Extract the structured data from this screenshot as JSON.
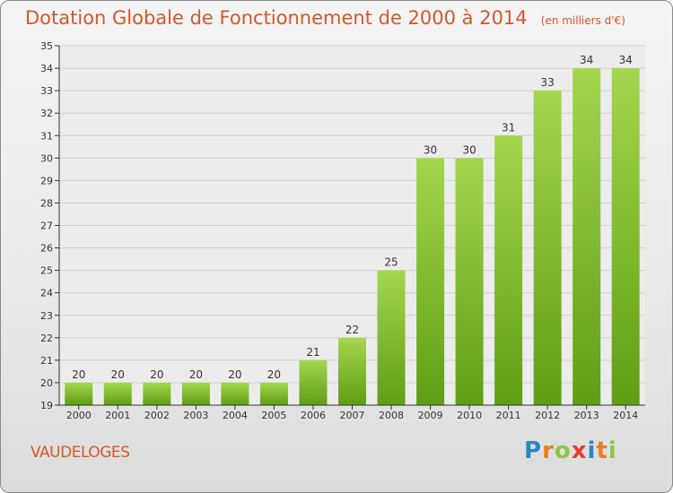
{
  "header": {
    "title": "Dotation Globale de Fonctionnement de 2000 à 2014",
    "unit": "(en milliers d'€)"
  },
  "commune": "VAUDELOGES",
  "logo": {
    "letters": [
      "P",
      "r",
      "o",
      "x",
      "i",
      "t",
      "i"
    ],
    "colors": [
      "#2e86c1",
      "#e67e22",
      "#8dc63f",
      "#e53935",
      "#2e86c1",
      "#e67e22",
      "#8dc63f"
    ]
  },
  "colors": {
    "title": "#d4572a",
    "bar_light": "#a4d64e",
    "bar_dark": "#5f9e14",
    "grid": "#cfcfcf",
    "axis": "#333333"
  },
  "chart_data": {
    "type": "bar",
    "categories": [
      "2000",
      "2001",
      "2002",
      "2003",
      "2004",
      "2005",
      "2006",
      "2007",
      "2008",
      "2009",
      "2010",
      "2011",
      "2012",
      "2013",
      "2014"
    ],
    "values": [
      20,
      20,
      20,
      20,
      20,
      20,
      21,
      22,
      25,
      30,
      30,
      31,
      33,
      34,
      34
    ],
    "ylim": [
      19,
      35
    ],
    "yticks": [
      19,
      20,
      21,
      22,
      23,
      24,
      25,
      26,
      27,
      28,
      29,
      30,
      31,
      32,
      33,
      34,
      35
    ],
    "grid": true,
    "data_labels": true
  }
}
